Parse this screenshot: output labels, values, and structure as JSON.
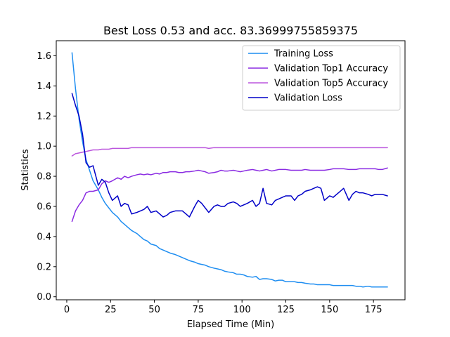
{
  "chart_data": {
    "type": "line",
    "title": "Best Loss 0.53 and acc. 83.36999755859375",
    "xlabel": "Elapsed Time (Min)",
    "ylabel": "Statistics",
    "xlim": [
      -6,
      193
    ],
    "ylim": [
      -0.02,
      1.7
    ],
    "xticks": [
      0,
      25,
      50,
      75,
      100,
      125,
      150,
      175
    ],
    "yticks": [
      0.0,
      0.2,
      0.4,
      0.6,
      0.8,
      1.0,
      1.2,
      1.4,
      1.6
    ],
    "grid": false,
    "legend_position": "top-right",
    "x": [
      3,
      5,
      7,
      9,
      11,
      13,
      15,
      18,
      20,
      22,
      24,
      26,
      29,
      31,
      33,
      35,
      37,
      40,
      42,
      44,
      46,
      48,
      51,
      53,
      55,
      57,
      59,
      62,
      64,
      66,
      68,
      70,
      73,
      75,
      77,
      79,
      81,
      84,
      86,
      88,
      90,
      92,
      95,
      97,
      99,
      101,
      103,
      106,
      108,
      110,
      112,
      114,
      117,
      119,
      121,
      123,
      125,
      128,
      130,
      132,
      134,
      136,
      139,
      141,
      143,
      145,
      147,
      150,
      152,
      154,
      156,
      158,
      161,
      163,
      165,
      167,
      169,
      172,
      174,
      176,
      178,
      180,
      183
    ],
    "series": [
      {
        "name": "Training Loss",
        "color": "#1f8ef1",
        "values": [
          1.62,
          1.38,
          1.18,
          1.03,
          0.91,
          0.84,
          0.77,
          0.71,
          0.66,
          0.62,
          0.59,
          0.56,
          0.53,
          0.5,
          0.48,
          0.46,
          0.44,
          0.42,
          0.4,
          0.38,
          0.37,
          0.35,
          0.34,
          0.32,
          0.31,
          0.3,
          0.29,
          0.28,
          0.27,
          0.26,
          0.25,
          0.24,
          0.23,
          0.22,
          0.215,
          0.21,
          0.2,
          0.19,
          0.185,
          0.18,
          0.17,
          0.165,
          0.16,
          0.15,
          0.15,
          0.145,
          0.135,
          0.13,
          0.135,
          0.115,
          0.12,
          0.12,
          0.115,
          0.105,
          0.11,
          0.11,
          0.1,
          0.1,
          0.1,
          0.095,
          0.095,
          0.09,
          0.085,
          0.085,
          0.08,
          0.08,
          0.08,
          0.08,
          0.075,
          0.075,
          0.075,
          0.075,
          0.075,
          0.075,
          0.07,
          0.07,
          0.065,
          0.07,
          0.065,
          0.065,
          0.065,
          0.065,
          0.065
        ]
      },
      {
        "name": "Validation Top1 Accuracy",
        "color": "#8a2be2",
        "values": [
          0.5,
          0.57,
          0.61,
          0.64,
          0.69,
          0.7,
          0.7,
          0.71,
          0.75,
          0.77,
          0.76,
          0.77,
          0.79,
          0.78,
          0.8,
          0.79,
          0.8,
          0.81,
          0.815,
          0.81,
          0.815,
          0.81,
          0.82,
          0.815,
          0.825,
          0.825,
          0.83,
          0.83,
          0.825,
          0.825,
          0.83,
          0.83,
          0.835,
          0.84,
          0.835,
          0.83,
          0.82,
          0.825,
          0.83,
          0.84,
          0.835,
          0.835,
          0.84,
          0.835,
          0.83,
          0.835,
          0.84,
          0.845,
          0.84,
          0.835,
          0.84,
          0.845,
          0.835,
          0.84,
          0.845,
          0.845,
          0.845,
          0.84,
          0.84,
          0.84,
          0.84,
          0.845,
          0.84,
          0.84,
          0.84,
          0.84,
          0.84,
          0.845,
          0.85,
          0.85,
          0.85,
          0.85,
          0.845,
          0.845,
          0.845,
          0.85,
          0.85,
          0.85,
          0.85,
          0.85,
          0.845,
          0.845,
          0.855
        ]
      },
      {
        "name": "Validation Top5 Accuracy",
        "color": "#bb55dd",
        "values": [
          0.935,
          0.95,
          0.955,
          0.96,
          0.965,
          0.97,
          0.975,
          0.975,
          0.98,
          0.98,
          0.98,
          0.985,
          0.985,
          0.985,
          0.985,
          0.985,
          0.99,
          0.99,
          0.99,
          0.99,
          0.99,
          0.99,
          0.99,
          0.99,
          0.99,
          0.99,
          0.99,
          0.99,
          0.99,
          0.99,
          0.99,
          0.99,
          0.99,
          0.99,
          0.99,
          0.99,
          0.985,
          0.99,
          0.99,
          0.99,
          0.99,
          0.99,
          0.99,
          0.99,
          0.99,
          0.99,
          0.99,
          0.99,
          0.99,
          0.99,
          0.99,
          0.99,
          0.99,
          0.99,
          0.99,
          0.99,
          0.99,
          0.99,
          0.99,
          0.99,
          0.99,
          0.99,
          0.99,
          0.99,
          0.99,
          0.99,
          0.99,
          0.99,
          0.99,
          0.99,
          0.99,
          0.99,
          0.99,
          0.99,
          0.99,
          0.99,
          0.99,
          0.99,
          0.99,
          0.99,
          0.99,
          0.99,
          0.99
        ]
      },
      {
        "name": "Validation Loss",
        "color": "#0000c8",
        "values": [
          1.35,
          1.27,
          1.2,
          1.08,
          0.89,
          0.86,
          0.87,
          0.74,
          0.78,
          0.76,
          0.69,
          0.64,
          0.67,
          0.6,
          0.62,
          0.61,
          0.55,
          0.56,
          0.57,
          0.58,
          0.6,
          0.56,
          0.57,
          0.55,
          0.53,
          0.54,
          0.56,
          0.57,
          0.57,
          0.57,
          0.55,
          0.53,
          0.6,
          0.64,
          0.62,
          0.59,
          0.56,
          0.6,
          0.61,
          0.6,
          0.6,
          0.62,
          0.63,
          0.62,
          0.6,
          0.61,
          0.62,
          0.64,
          0.6,
          0.62,
          0.72,
          0.62,
          0.61,
          0.64,
          0.65,
          0.66,
          0.67,
          0.67,
          0.64,
          0.67,
          0.68,
          0.7,
          0.71,
          0.72,
          0.73,
          0.72,
          0.64,
          0.67,
          0.66,
          0.68,
          0.7,
          0.72,
          0.64,
          0.68,
          0.7,
          0.69,
          0.69,
          0.68,
          0.67,
          0.68,
          0.68,
          0.68,
          0.67
        ]
      }
    ]
  }
}
